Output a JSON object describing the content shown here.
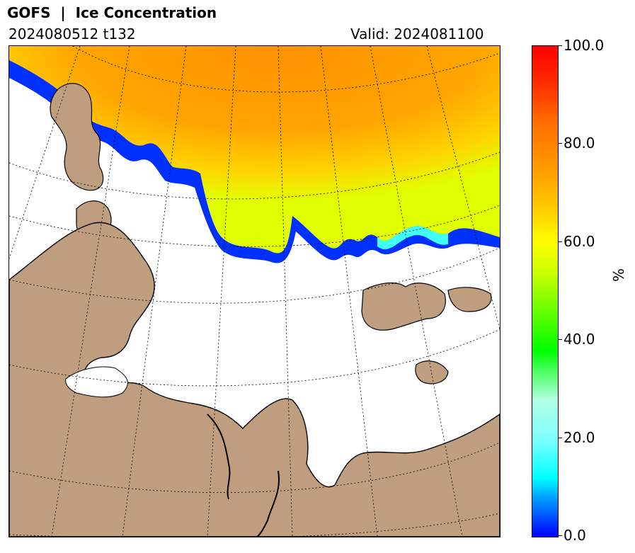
{
  "header": {
    "title": "GOFS  |  Ice Concentration",
    "run": "2024080512 t132",
    "valid": "Valid: 2024081100"
  },
  "colorbar": {
    "unit": "%",
    "ticks": [
      "100.0",
      "80.0",
      "60.0",
      "40.0",
      "20.0",
      "0.0"
    ],
    "range": [
      0,
      100
    ],
    "colors": {
      "low": "#0000ff",
      "mid_low": "#00ffff",
      "mid": "#00ff00",
      "mid_high": "#ffff00",
      "high": "#ff0000"
    }
  },
  "map": {
    "land_color": "#bf9e80",
    "ocean_color": "#ffffff",
    "ice_dominant_color": "#ff9a00"
  }
}
